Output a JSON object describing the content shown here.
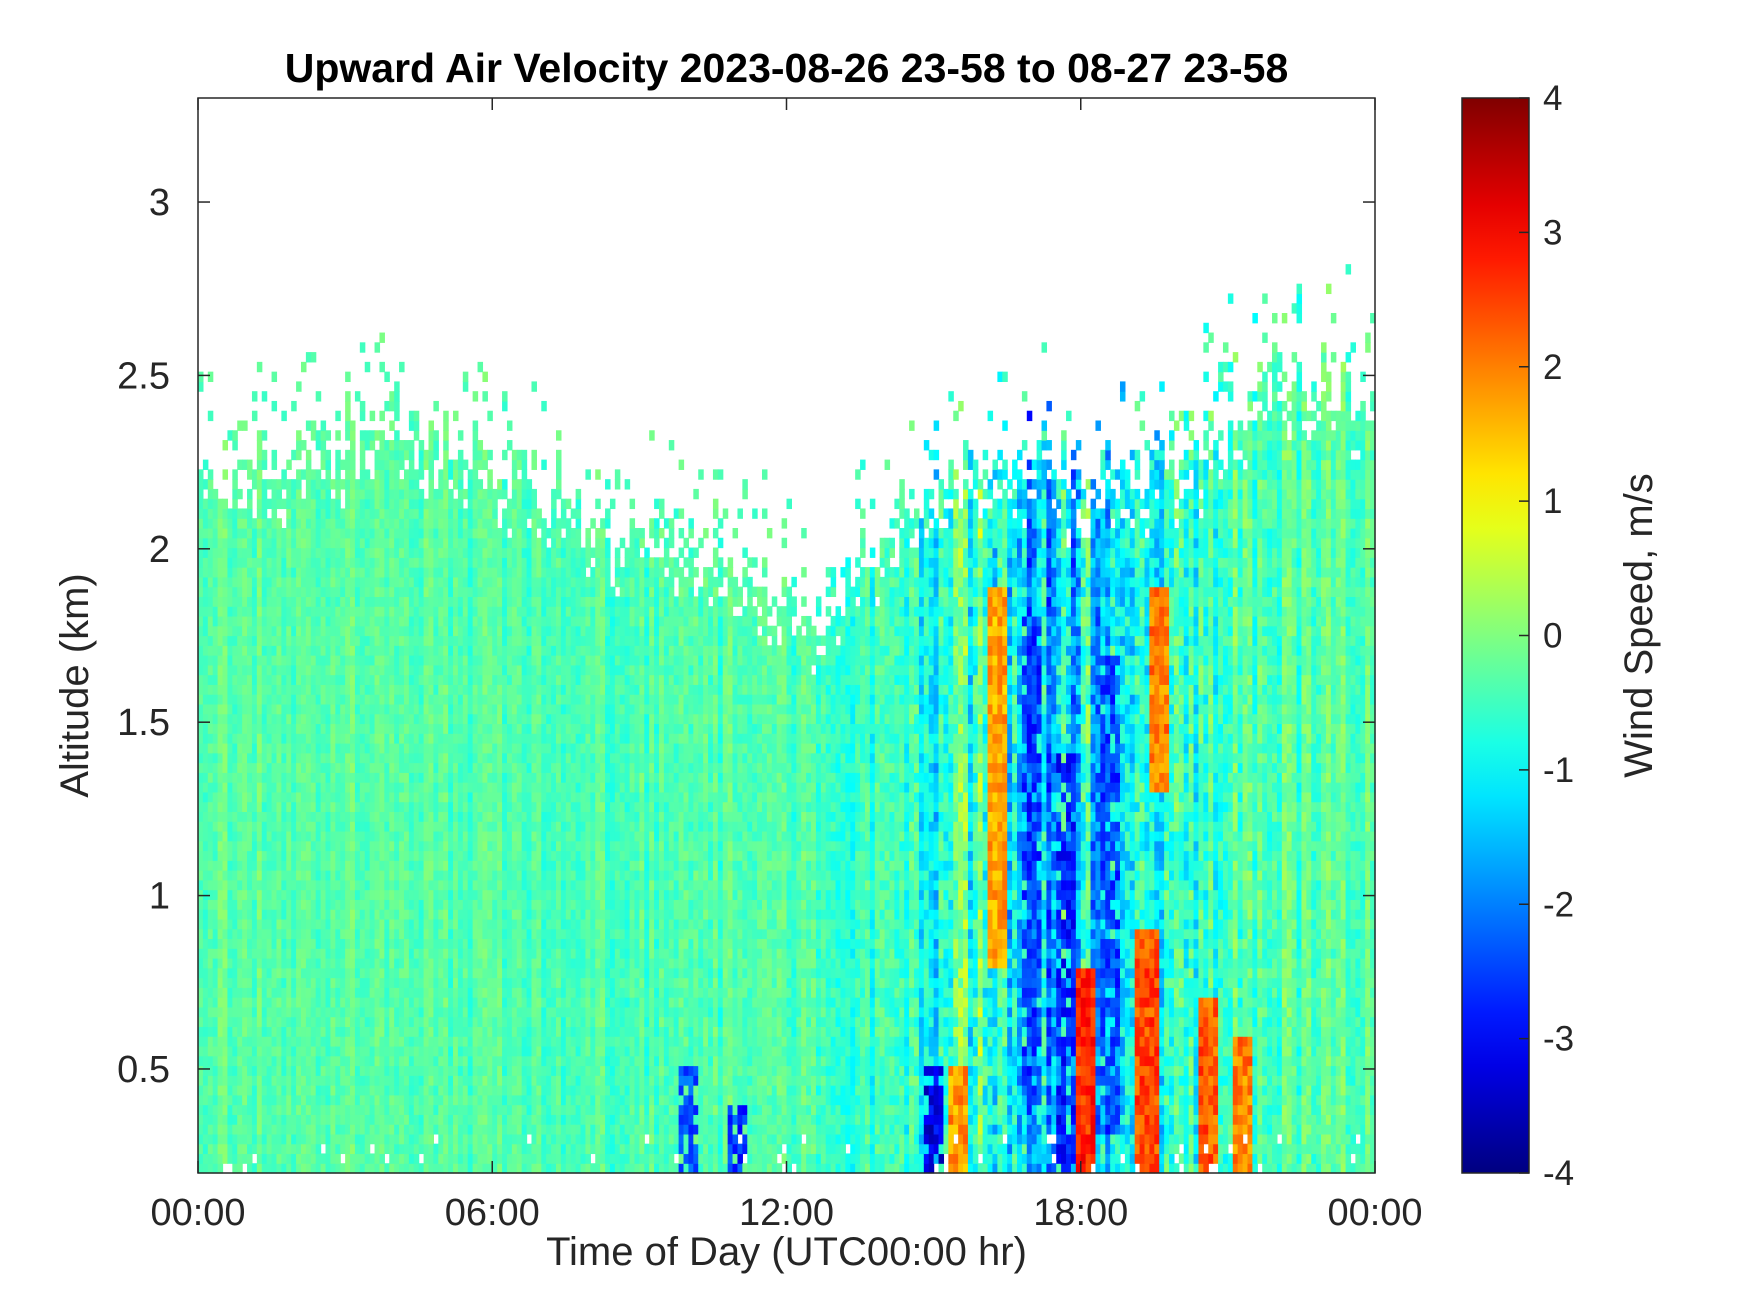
{
  "chart_data": {
    "type": "heatmap",
    "title": "Upward Air Velocity 2023-08-26 23-58 to 08-27 23-58",
    "xlabel": "Time of Day (UTC00:00 hr)",
    "ylabel": "Altitude (km)",
    "colorbar_label": "Wind Speed, m/s",
    "x_unit": "hours",
    "xlim": [
      0,
      24
    ],
    "ylim": [
      0.2,
      3.3
    ],
    "clim": [
      -4,
      4
    ],
    "colormap": "jet",
    "grid": false,
    "x_ticks": [
      {
        "value": 0,
        "label": "00:00"
      },
      {
        "value": 6,
        "label": "06:00"
      },
      {
        "value": 12,
        "label": "12:00"
      },
      {
        "value": 18,
        "label": "18:00"
      },
      {
        "value": 24,
        "label": "00:00"
      }
    ],
    "y_ticks": [
      {
        "value": 0.5,
        "label": "0.5"
      },
      {
        "value": 1,
        "label": "1"
      },
      {
        "value": 1.5,
        "label": "1.5"
      },
      {
        "value": 2,
        "label": "2"
      },
      {
        "value": 2.5,
        "label": "2.5"
      },
      {
        "value": 3,
        "label": "3"
      }
    ],
    "colorbar_ticks": [
      {
        "value": 4,
        "label": "4"
      },
      {
        "value": 3,
        "label": "3"
      },
      {
        "value": 2,
        "label": "2"
      },
      {
        "value": 1,
        "label": "1"
      },
      {
        "value": 0,
        "label": "0"
      },
      {
        "value": -1,
        "label": "-1"
      },
      {
        "value": -2,
        "label": "-2"
      },
      {
        "value": -3,
        "label": "-3"
      },
      {
        "value": -4,
        "label": "-4"
      }
    ],
    "data_top_altitude_km": {
      "time_hours": [
        0,
        1,
        2,
        3,
        4,
        5,
        6,
        7,
        8,
        9,
        10,
        11,
        12,
        13,
        14,
        15,
        16,
        17,
        18,
        19,
        20,
        21,
        22,
        23,
        24
      ],
      "altitude_km": [
        2.22,
        2.27,
        2.3,
        2.36,
        2.4,
        2.33,
        2.27,
        2.22,
        2.13,
        2.06,
        2.04,
        1.95,
        1.84,
        1.9,
        2.1,
        2.2,
        2.3,
        2.3,
        2.2,
        2.22,
        2.25,
        2.42,
        2.52,
        2.5,
        2.45
      ]
    },
    "velocity_pattern_m_s": {
      "time_hours": [
        0,
        2,
        4,
        6,
        8,
        10,
        12,
        14,
        15,
        16,
        17,
        18,
        19,
        20,
        21,
        22,
        24
      ],
      "typical_velocity": [
        -0.3,
        -0.3,
        -0.3,
        -0.4,
        -0.4,
        -0.4,
        -0.4,
        -0.6,
        -0.9,
        -0.3,
        -1.6,
        -1.2,
        -0.9,
        -0.6,
        -0.5,
        -0.4,
        -0.3
      ],
      "velocity_spread": [
        0.5,
        0.5,
        0.5,
        0.5,
        0.5,
        0.6,
        0.6,
        0.8,
        1.2,
        1.6,
        1.8,
        1.8,
        1.6,
        1.3,
        1.0,
        0.8,
        0.6
      ]
    },
    "updraft_bands": [
      {
        "time_hours": 16.3,
        "altitude_km": [
          0.8,
          1.9
        ],
        "velocity": 1.7
      },
      {
        "time_hours": 18.1,
        "altitude_km": [
          0.2,
          0.8
        ],
        "velocity": 2.7
      },
      {
        "time_hours": 19.4,
        "altitude_km": [
          0.2,
          0.9
        ],
        "velocity": 2.4
      },
      {
        "time_hours": 19.6,
        "altitude_km": [
          1.3,
          1.9
        ],
        "velocity": 2.0
      },
      {
        "time_hours": 20.6,
        "altitude_km": [
          0.2,
          0.7
        ],
        "velocity": 2.3
      },
      {
        "time_hours": 21.3,
        "altitude_km": [
          0.2,
          0.6
        ],
        "velocity": 2.0
      },
      {
        "time_hours": 15.5,
        "altitude_km": [
          0.2,
          0.5
        ],
        "velocity": 1.8
      }
    ],
    "downdraft_bands": [
      {
        "time_hours": 17.0,
        "altitude_km": [
          0.4,
          1.8
        ],
        "velocity": -2.6
      },
      {
        "time_hours": 17.7,
        "altitude_km": [
          0.2,
          1.4
        ],
        "velocity": -2.8
      },
      {
        "time_hours": 18.6,
        "altitude_km": [
          0.3,
          1.7
        ],
        "velocity": -2.5
      },
      {
        "time_hours": 15.0,
        "altitude_km": [
          0.2,
          0.5
        ],
        "velocity": -3.2
      },
      {
        "time_hours": 10.0,
        "altitude_km": [
          0.2,
          0.5
        ],
        "velocity": -2.4
      },
      {
        "time_hours": 11.0,
        "altitude_km": [
          0.2,
          0.4
        ],
        "velocity": -2.6
      }
    ]
  }
}
